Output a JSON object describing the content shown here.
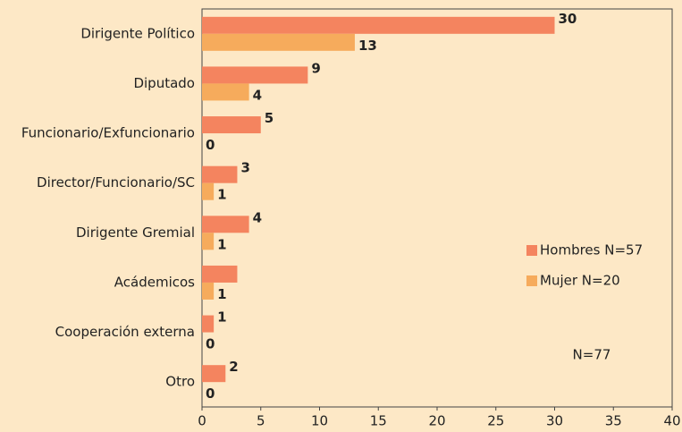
{
  "chart_data": {
    "type": "barh",
    "categories": [
      "Dirigente Político",
      "Diputado",
      "Funcionario/Exfuncionario",
      "Director/Funcionario/SC",
      "Dirigente Gremial",
      "Acádemicos",
      "Cooperación externa",
      "Otro"
    ],
    "series": [
      {
        "name": "Hombres N=57",
        "color": "#f4845f",
        "values": [
          30,
          9,
          5,
          3,
          4,
          3,
          1,
          2
        ],
        "value_labels": [
          "30",
          "9",
          "5",
          "3",
          "4",
          null,
          "1",
          "2"
        ]
      },
      {
        "name": "Mujer N=20",
        "color": "#f6ab5c",
        "values": [
          13,
          4,
          0,
          1,
          1,
          1,
          0,
          0
        ]
      }
    ],
    "xlim": [
      0,
      40
    ],
    "xticks": [
      0,
      5,
      10,
      15,
      20,
      25,
      30,
      35,
      40
    ],
    "grid": false,
    "legend": "right",
    "annotation": "N=77"
  }
}
